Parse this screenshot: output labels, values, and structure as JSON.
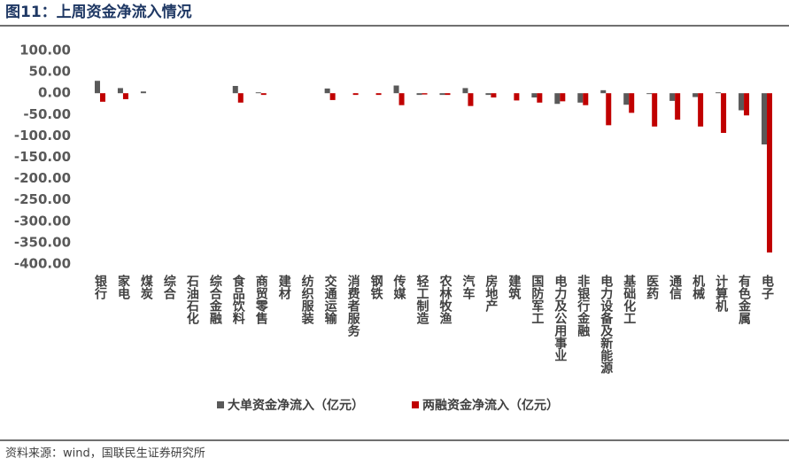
{
  "chart_data": {
    "type": "bar",
    "title": "图11：上周资金净流入情况",
    "source": "资料来源：wind，国联民生证券研究所",
    "categories": [
      "银行",
      "家电",
      "煤炭",
      "综合",
      "石油石化",
      "综合金融",
      "食品饮料",
      "商贸零售",
      "建材",
      "纺织服装",
      "交通运输",
      "消费者服务",
      "钢铁",
      "传媒",
      "轻工制造",
      "农林牧渔",
      "汽车",
      "房地产",
      "建筑",
      "国防军工",
      "电力及公用事业",
      "非银行金融",
      "电力设备及新能源",
      "基础化工",
      "医药",
      "通信",
      "机械",
      "计算机",
      "有色金属",
      "电子"
    ],
    "series": [
      {
        "name": "大单资金净流入（亿元）",
        "color": "#595959",
        "values": [
          29,
          12,
          4,
          0,
          0,
          0,
          17,
          2,
          0,
          0,
          11,
          0,
          0,
          18,
          -4,
          -4,
          12,
          -4,
          0,
          -10,
          -25,
          -22,
          7,
          -27,
          -2,
          -18,
          -9,
          2,
          -40,
          -120
        ]
      },
      {
        "name": "两融资金净流入（亿元）",
        "color": "#c00000",
        "values": [
          -20,
          -14,
          0,
          0,
          0,
          0,
          -22,
          -4,
          0,
          0,
          -16,
          -4,
          -4,
          -28,
          -3,
          -4,
          -30,
          -10,
          -17,
          -22,
          -19,
          -28,
          -75,
          -46,
          -78,
          -62,
          -78,
          -93,
          -52,
          -373
        ]
      }
    ],
    "ylim": [
      -400,
      100
    ],
    "yticks": [
      {
        "value": 100,
        "label": "100.00"
      },
      {
        "value": 50,
        "label": "50.00"
      },
      {
        "value": 0,
        "label": "0.00"
      },
      {
        "value": -50,
        "label": "-50.00"
      },
      {
        "value": -100,
        "label": "-100.00"
      },
      {
        "value": -150,
        "label": "-150.00"
      },
      {
        "value": -200,
        "label": "-200.00"
      },
      {
        "value": -250,
        "label": "-250.00"
      },
      {
        "value": -300,
        "label": "-300.00"
      },
      {
        "value": -350,
        "label": "-350.00"
      },
      {
        "value": -400,
        "label": "-400.00"
      }
    ],
    "grid": false,
    "legend": "bottom"
  }
}
